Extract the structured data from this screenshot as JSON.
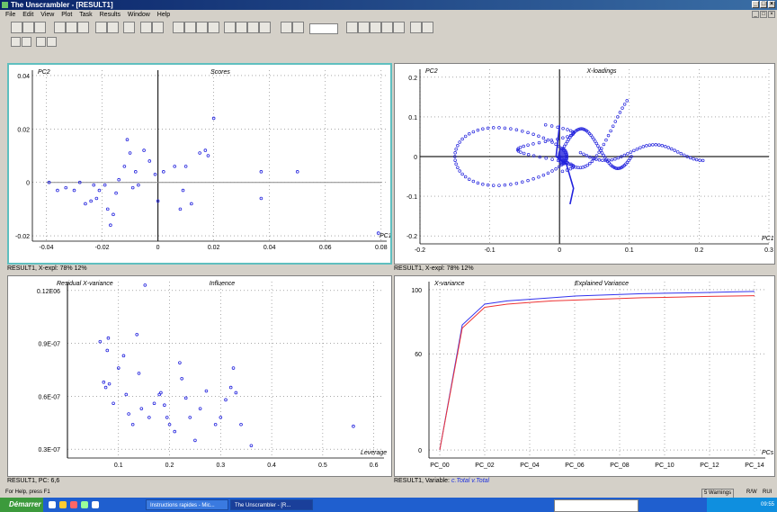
{
  "window": {
    "title": "The Unscrambler - [RESULT1]",
    "menu": [
      "File",
      "Edit",
      "View",
      "Plot",
      "Task",
      "Results",
      "Window",
      "Help"
    ]
  },
  "panels": {
    "scores": {
      "title": "Scores",
      "ylabel": "PC2",
      "xlabel": "PC1",
      "status": "RESULT1, X-expl: 78% 12%"
    },
    "xloadings": {
      "title": "X-loadings",
      "ylabel": "PC2",
      "xlabel": "PC1",
      "status": "RESULT1, X-expl: 78% 12%"
    },
    "influence": {
      "title": "Influence",
      "ylabel": "Residual X-variance",
      "xlabel": "Leverage",
      "status": "RESULT1, PC: 6,6"
    },
    "variance": {
      "title": "Explained Variance",
      "ylabel": "X-variance",
      "xlabel": "PCs",
      "status_prefix": "RESULT1, Variable: ",
      "status_highlight": "c.Total v.Total"
    }
  },
  "help_text": "For Help, press F1",
  "status_right": [
    "5 Warnings",
    "R/W",
    "RUI"
  ],
  "taskbar": {
    "start": "Démarrer",
    "tasks": [
      "Instructions rapides - Mic...",
      "The Unscrambler - [R..."
    ],
    "tray_time": "09:55"
  },
  "chart_data": [
    {
      "type": "scatter",
      "title": "Scores",
      "xlabel": "PC1",
      "ylabel": "PC2",
      "xlim": [
        -0.045,
        0.082
      ],
      "ylim": [
        -0.022,
        0.042
      ],
      "xticks": [
        "-0.04",
        "-0.02",
        "0",
        "0.02",
        "0.04",
        "0.06",
        "0.08"
      ],
      "yticks": [
        "0.04",
        "0.02",
        "0",
        "-0.02"
      ],
      "points": [
        [
          -0.039,
          0.0
        ],
        [
          -0.036,
          -0.003
        ],
        [
          -0.033,
          -0.002
        ],
        [
          -0.03,
          -0.003
        ],
        [
          -0.028,
          0.0
        ],
        [
          -0.026,
          -0.008
        ],
        [
          -0.024,
          -0.007
        ],
        [
          -0.023,
          -0.001
        ],
        [
          -0.022,
          -0.006
        ],
        [
          -0.021,
          -0.003
        ],
        [
          -0.019,
          -0.001
        ],
        [
          -0.018,
          -0.01
        ],
        [
          -0.017,
          -0.016
        ],
        [
          -0.016,
          -0.012
        ],
        [
          -0.015,
          -0.004
        ],
        [
          -0.014,
          0.001
        ],
        [
          -0.012,
          0.006
        ],
        [
          -0.011,
          0.016
        ],
        [
          -0.01,
          0.011
        ],
        [
          -0.009,
          -0.002
        ],
        [
          -0.008,
          0.004
        ],
        [
          -0.007,
          -0.001
        ],
        [
          -0.005,
          0.012
        ],
        [
          -0.003,
          0.008
        ],
        [
          -0.001,
          0.003
        ],
        [
          0.0,
          -0.007
        ],
        [
          0.002,
          0.004
        ],
        [
          0.006,
          0.006
        ],
        [
          0.008,
          -0.01
        ],
        [
          0.012,
          -0.008
        ],
        [
          0.009,
          -0.003
        ],
        [
          0.01,
          0.006
        ],
        [
          0.015,
          0.011
        ],
        [
          0.018,
          0.01
        ],
        [
          0.017,
          0.012
        ],
        [
          0.02,
          0.024
        ],
        [
          0.037,
          0.004
        ],
        [
          0.037,
          -0.006
        ],
        [
          0.05,
          0.004
        ],
        [
          0.079,
          -0.019
        ]
      ]
    },
    {
      "type": "scatter",
      "title": "X-loadings",
      "xlabel": "PC1",
      "ylabel": "PC2",
      "xlim": [
        -0.2,
        0.3
      ],
      "ylim": [
        -0.22,
        0.22
      ],
      "xticks": [
        "-0.2",
        "-0.1",
        "0",
        "0.1",
        "0.2",
        "0.3"
      ],
      "yticks": [
        "0.2",
        "0.1",
        "0",
        "-0.1",
        "-0.2"
      ]
    },
    {
      "type": "scatter",
      "title": "Influence",
      "xlabel": "Leverage",
      "ylabel": "Residual X-variance",
      "xlim": [
        0,
        0.62
      ],
      "ylim": [
        2.5e-07,
        1.25e-06
      ],
      "xticks": [
        "0.1",
        "0.2",
        "0.3",
        "0.4",
        "0.5",
        "0.6"
      ],
      "yticks": [
        "0.12E06",
        "0.9E-07",
        "0.6E-07",
        "0.3E-07"
      ],
      "points": [
        [
          0.064,
          9.1e-07
        ],
        [
          0.078,
          8.6e-07
        ],
        [
          0.08,
          9.3e-07
        ],
        [
          0.071,
          6.8e-07
        ],
        [
          0.075,
          6.5e-07
        ],
        [
          0.082,
          6.7e-07
        ],
        [
          0.09,
          5.6e-07
        ],
        [
          0.1,
          7.6e-07
        ],
        [
          0.11,
          8.3e-07
        ],
        [
          0.115,
          6.1e-07
        ],
        [
          0.12,
          5e-07
        ],
        [
          0.128,
          4.4e-07
        ],
        [
          0.136,
          9.5e-07
        ],
        [
          0.14,
          7.3e-07
        ],
        [
          0.145,
          5.3e-07
        ],
        [
          0.152,
          1.23e-06
        ],
        [
          0.16,
          4.8e-07
        ],
        [
          0.17,
          5.6e-07
        ],
        [
          0.18,
          6.1e-07
        ],
        [
          0.183,
          6.2e-07
        ],
        [
          0.19,
          5.5e-07
        ],
        [
          0.195,
          4.8e-07
        ],
        [
          0.2,
          4.4e-07
        ],
        [
          0.21,
          4e-07
        ],
        [
          0.22,
          7.9e-07
        ],
        [
          0.224,
          7e-07
        ],
        [
          0.232,
          5.9e-07
        ],
        [
          0.24,
          4.8e-07
        ],
        [
          0.25,
          3.5e-07
        ],
        [
          0.26,
          5.3e-07
        ],
        [
          0.272,
          6.3e-07
        ],
        [
          0.29,
          4.4e-07
        ],
        [
          0.3,
          4.8e-07
        ],
        [
          0.31,
          5.8e-07
        ],
        [
          0.32,
          6.5e-07
        ],
        [
          0.325,
          7.6e-07
        ],
        [
          0.33,
          6.2e-07
        ],
        [
          0.34,
          4.4e-07
        ],
        [
          0.36,
          3.2e-07
        ],
        [
          0.56,
          4.3e-07
        ]
      ]
    },
    {
      "type": "line",
      "title": "Explained Variance",
      "xlabel": "PCs",
      "ylabel": "X-variance",
      "ylim": [
        -5,
        105
      ],
      "categories": [
        "PC_00",
        "PC_01",
        "PC_02",
        "PC_03",
        "PC_04",
        "PC_05",
        "PC_06",
        "PC_07",
        "PC_08",
        "PC_09",
        "PC_10",
        "PC_11",
        "PC_12",
        "PC_13",
        "PC_14"
      ],
      "tick_labels": [
        "PC_00",
        "PC_02",
        "PC_04",
        "PC_06",
        "PC_08",
        "PC_10",
        "PC_12",
        "PC_14"
      ],
      "yticks": [
        "100",
        "60",
        "0"
      ],
      "series": [
        {
          "color": "#3333ee",
          "values": [
            0,
            78,
            91,
            93,
            94,
            95,
            96,
            96.5,
            97,
            97.5,
            97.8,
            98,
            98.3,
            98.6,
            98.9
          ]
        },
        {
          "color": "#ee3333",
          "values": [
            0,
            76,
            89,
            91,
            92,
            93,
            93.5,
            94,
            94.5,
            95,
            95.2,
            95.5,
            95.8,
            96,
            96.2
          ]
        }
      ]
    }
  ]
}
